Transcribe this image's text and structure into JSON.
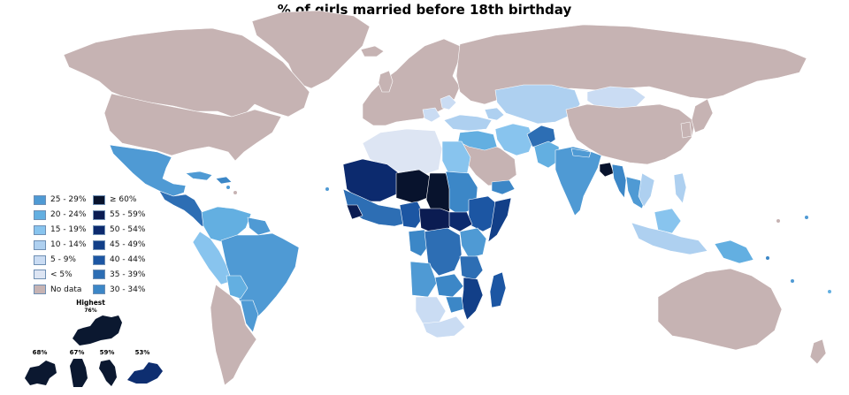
{
  "title": "% of girls married before 18th birthday",
  "colors": {
    "no_data": "#c6b3b3",
    "lt5": "#dde5f3",
    "r5_9": "#cadcf3",
    "r10_14": "#aed0f0",
    "r15_19": "#88c4ee",
    "r20_24": "#63afe1",
    "r25_29": "#4f9ad4",
    "r30_34": "#3c87c7",
    "r35_39": "#2d6eb4",
    "r40_44": "#1c56a3",
    "r45_49": "#123f88",
    "r50_54": "#0c2a6e",
    "r55_59": "#0b1c52",
    "ge60": "#08132d",
    "ocean": "#ffffff",
    "swatch_border": "#6f8fb3"
  },
  "legend": {
    "column_1": [
      {
        "label": "25 - 29%",
        "color": "#4f9ad4"
      },
      {
        "label": "20 - 24%",
        "color": "#63afe1"
      },
      {
        "label": "15 - 19%",
        "color": "#88c4ee"
      },
      {
        "label": "10 - 14%",
        "color": "#aed0f0"
      },
      {
        "label": "5 - 9%",
        "color": "#cadcf3"
      },
      {
        "label": "< 5%",
        "color": "#dde5f3"
      },
      {
        "label": "No data",
        "color": "#c6b3b3"
      }
    ],
    "column_2": [
      {
        "label": "≥ 60%",
        "color": "#08132d"
      },
      {
        "label": "55 - 59%",
        "color": "#0b1c52"
      },
      {
        "label": "50 - 54%",
        "color": "#0c2a6e"
      },
      {
        "label": "45 - 49%",
        "color": "#123f88"
      },
      {
        "label": "40 - 44%",
        "color": "#1c56a3"
      },
      {
        "label": "35 - 39%",
        "color": "#2d6eb4"
      },
      {
        "label": "30 - 34%",
        "color": "#3c87c7"
      }
    ]
  },
  "highest": {
    "title": "Highest",
    "top_value": "76%",
    "others": [
      "68%",
      "67%",
      "59%",
      "53%"
    ]
  }
}
